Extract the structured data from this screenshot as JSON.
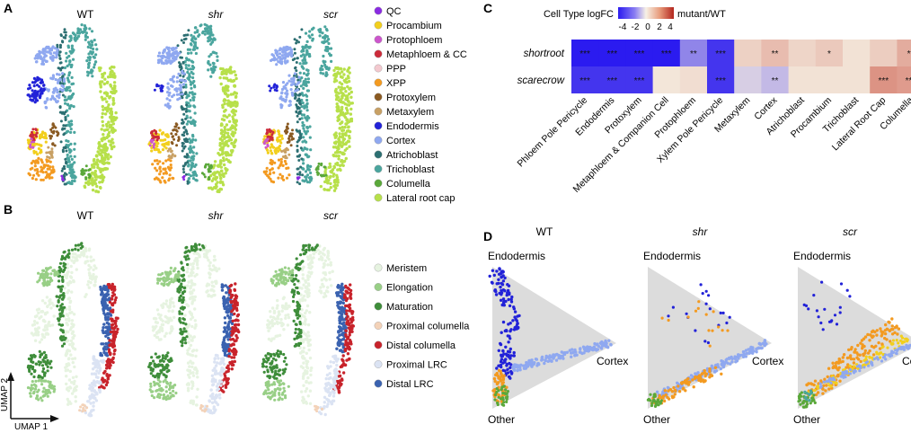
{
  "panels": {
    "A": "A",
    "B": "B",
    "C": "C",
    "D": "D"
  },
  "genotypes": [
    "WT",
    "shr",
    "scr"
  ],
  "umap_axes": {
    "y": "UMAP 2",
    "x": "UMAP 1"
  },
  "legend_a": {
    "items": [
      {
        "label": "QC",
        "color": "#8a2be2"
      },
      {
        "label": "Procambium",
        "color": "#f2cf1d"
      },
      {
        "label": "Protophloem",
        "color": "#cc55cc"
      },
      {
        "label": "Metaphloem & CC",
        "color": "#cc2b3a"
      },
      {
        "label": "PPP",
        "color": "#f3c9cf"
      },
      {
        "label": "XPP",
        "color": "#f39a20"
      },
      {
        "label": "Protoxylem",
        "color": "#8a5a22"
      },
      {
        "label": "Metaxylem",
        "color": "#c8a064"
      },
      {
        "label": "Endodermis",
        "color": "#2222d8"
      },
      {
        "label": "Cortex",
        "color": "#8fa8f0"
      },
      {
        "label": "Atrichoblast",
        "color": "#2c6f72"
      },
      {
        "label": "Trichoblast",
        "color": "#4aa59e"
      },
      {
        "label": "Columella",
        "color": "#5aa83a"
      },
      {
        "label": "Lateral root cap",
        "color": "#b7e04a"
      }
    ]
  },
  "legend_b": {
    "items": [
      {
        "label": "Meristem",
        "color": "#e6f3e0"
      },
      {
        "label": "Elongation",
        "color": "#98cf86"
      },
      {
        "label": "Maturation",
        "color": "#3e8d3a"
      },
      {
        "label": "Proximal columella",
        "color": "#f3d2b8"
      },
      {
        "label": "Distal columella",
        "color": "#c8232b"
      },
      {
        "label": "Proximal LRC",
        "color": "#dbe3f3"
      },
      {
        "label": "Distal LRC",
        "color": "#3a62b0"
      }
    ]
  },
  "panel_c": {
    "colorbar_title": "Cell Type logFC",
    "colorbar_ticks": [
      "-4",
      "-2",
      "0",
      "2",
      "4"
    ],
    "colorbar_right": "mutant/WT",
    "rows": [
      "shortroot",
      "scarecrow"
    ],
    "columns": [
      "Phloem Pole Pericycle",
      "Endodermis",
      "Protoxylem",
      "Metaphloem & Companion Cell",
      "Protophloem",
      "Xylem Pole Pericycle",
      "Metaxylem",
      "Cortex",
      "Atrichoblast",
      "Procambium",
      "Trichoblast",
      "Lateral Root Cap",
      "Columella"
    ]
  },
  "chart_data": {
    "type": "heatmap",
    "title": "Cell Type logFC",
    "legend": "mutant/WT",
    "color_range": [
      -4,
      4
    ],
    "rows": [
      "shortroot",
      "scarecrow"
    ],
    "columns": [
      "Phloem Pole Pericycle",
      "Endodermis",
      "Protoxylem",
      "Metaphloem & Companion Cell",
      "Protophloem",
      "Xylem Pole Pericycle",
      "Metaxylem",
      "Cortex",
      "Atrichoblast",
      "Procambium",
      "Trichoblast",
      "Lateral Root Cap",
      "Columella"
    ],
    "values": [
      [
        -4.5,
        -4.5,
        -4.5,
        -4.5,
        -2.0,
        -3.5,
        0.7,
        1.2,
        0.6,
        0.9,
        0.3,
        0.8,
        1.6
      ],
      [
        -3.5,
        -3.5,
        -3.5,
        0.2,
        0.4,
        -3.5,
        -0.6,
        -1.0,
        0.3,
        0.3,
        0.3,
        2.2,
        2.0
      ]
    ],
    "significance": [
      [
        "***",
        "***",
        "***",
        "***",
        "**",
        "***",
        "",
        "**",
        "",
        "*",
        "",
        "",
        "**"
      ],
      [
        "***",
        "***",
        "***",
        "",
        "",
        "***",
        "",
        "**",
        "",
        "",
        "",
        "***",
        "***"
      ]
    ]
  },
  "panel_d": {
    "vertices": {
      "top": "Endodermis",
      "right": "Cortex",
      "bottom": "Other"
    }
  }
}
